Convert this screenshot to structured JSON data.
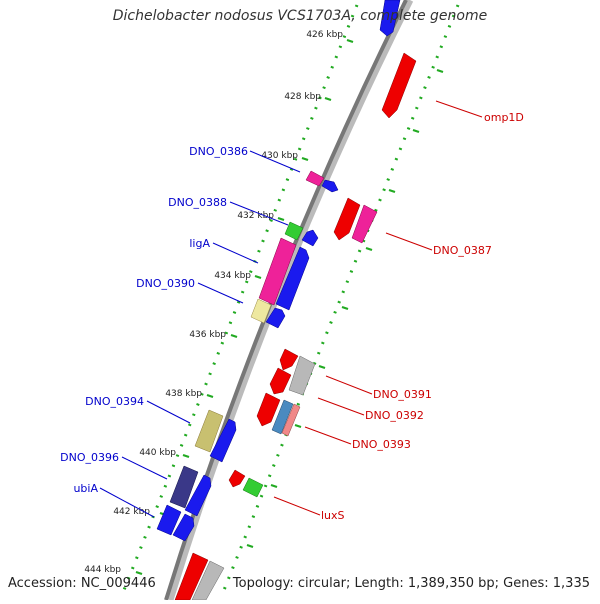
{
  "title": "Dichelobacter nodosus VCS1703A, complete genome",
  "accession": "Accession: NC_009446",
  "summary": "Topology: circular; Length: 1,389,350 bp; Genes: 1,335",
  "colors": {
    "red": "#ee0000",
    "blue": "#1a1aee",
    "magenta": "#ee2299",
    "green": "#33cc33",
    "grey": "#b8b8b8",
    "olive": "#c8c070",
    "paleyellow": "#eee8a0",
    "navy": "#3a3888",
    "steelblue": "#4a8ac0",
    "salmon": "#f08888",
    "backbone": "#777777",
    "tick": "#22aa22",
    "label_blue": "#0000cc",
    "label_red": "#cc0000"
  },
  "ticks": [
    {
      "label": "426 kbp"
    },
    {
      "label": "428 kbp"
    },
    {
      "label": "430 kbp"
    },
    {
      "label": "432 kbp"
    },
    {
      "label": "434 kbp"
    },
    {
      "label": "436 kbp"
    },
    {
      "label": "438 kbp"
    },
    {
      "label": "440 kbp"
    },
    {
      "label": "442 kbp"
    },
    {
      "label": "444 kbp"
    }
  ],
  "gene_labels_left": [
    {
      "text": "DNO_0386"
    },
    {
      "text": "DNO_0388"
    },
    {
      "text": "ligA"
    },
    {
      "text": "DNO_0390"
    },
    {
      "text": "DNO_0394"
    },
    {
      "text": "DNO_0396"
    },
    {
      "text": "ubiA"
    }
  ],
  "gene_labels_right": [
    {
      "text": "omp1D"
    },
    {
      "text": "DNO_0387"
    },
    {
      "text": "DNO_0391"
    },
    {
      "text": "DNO_0392"
    },
    {
      "text": "DNO_0393"
    },
    {
      "text": "luxS"
    }
  ]
}
